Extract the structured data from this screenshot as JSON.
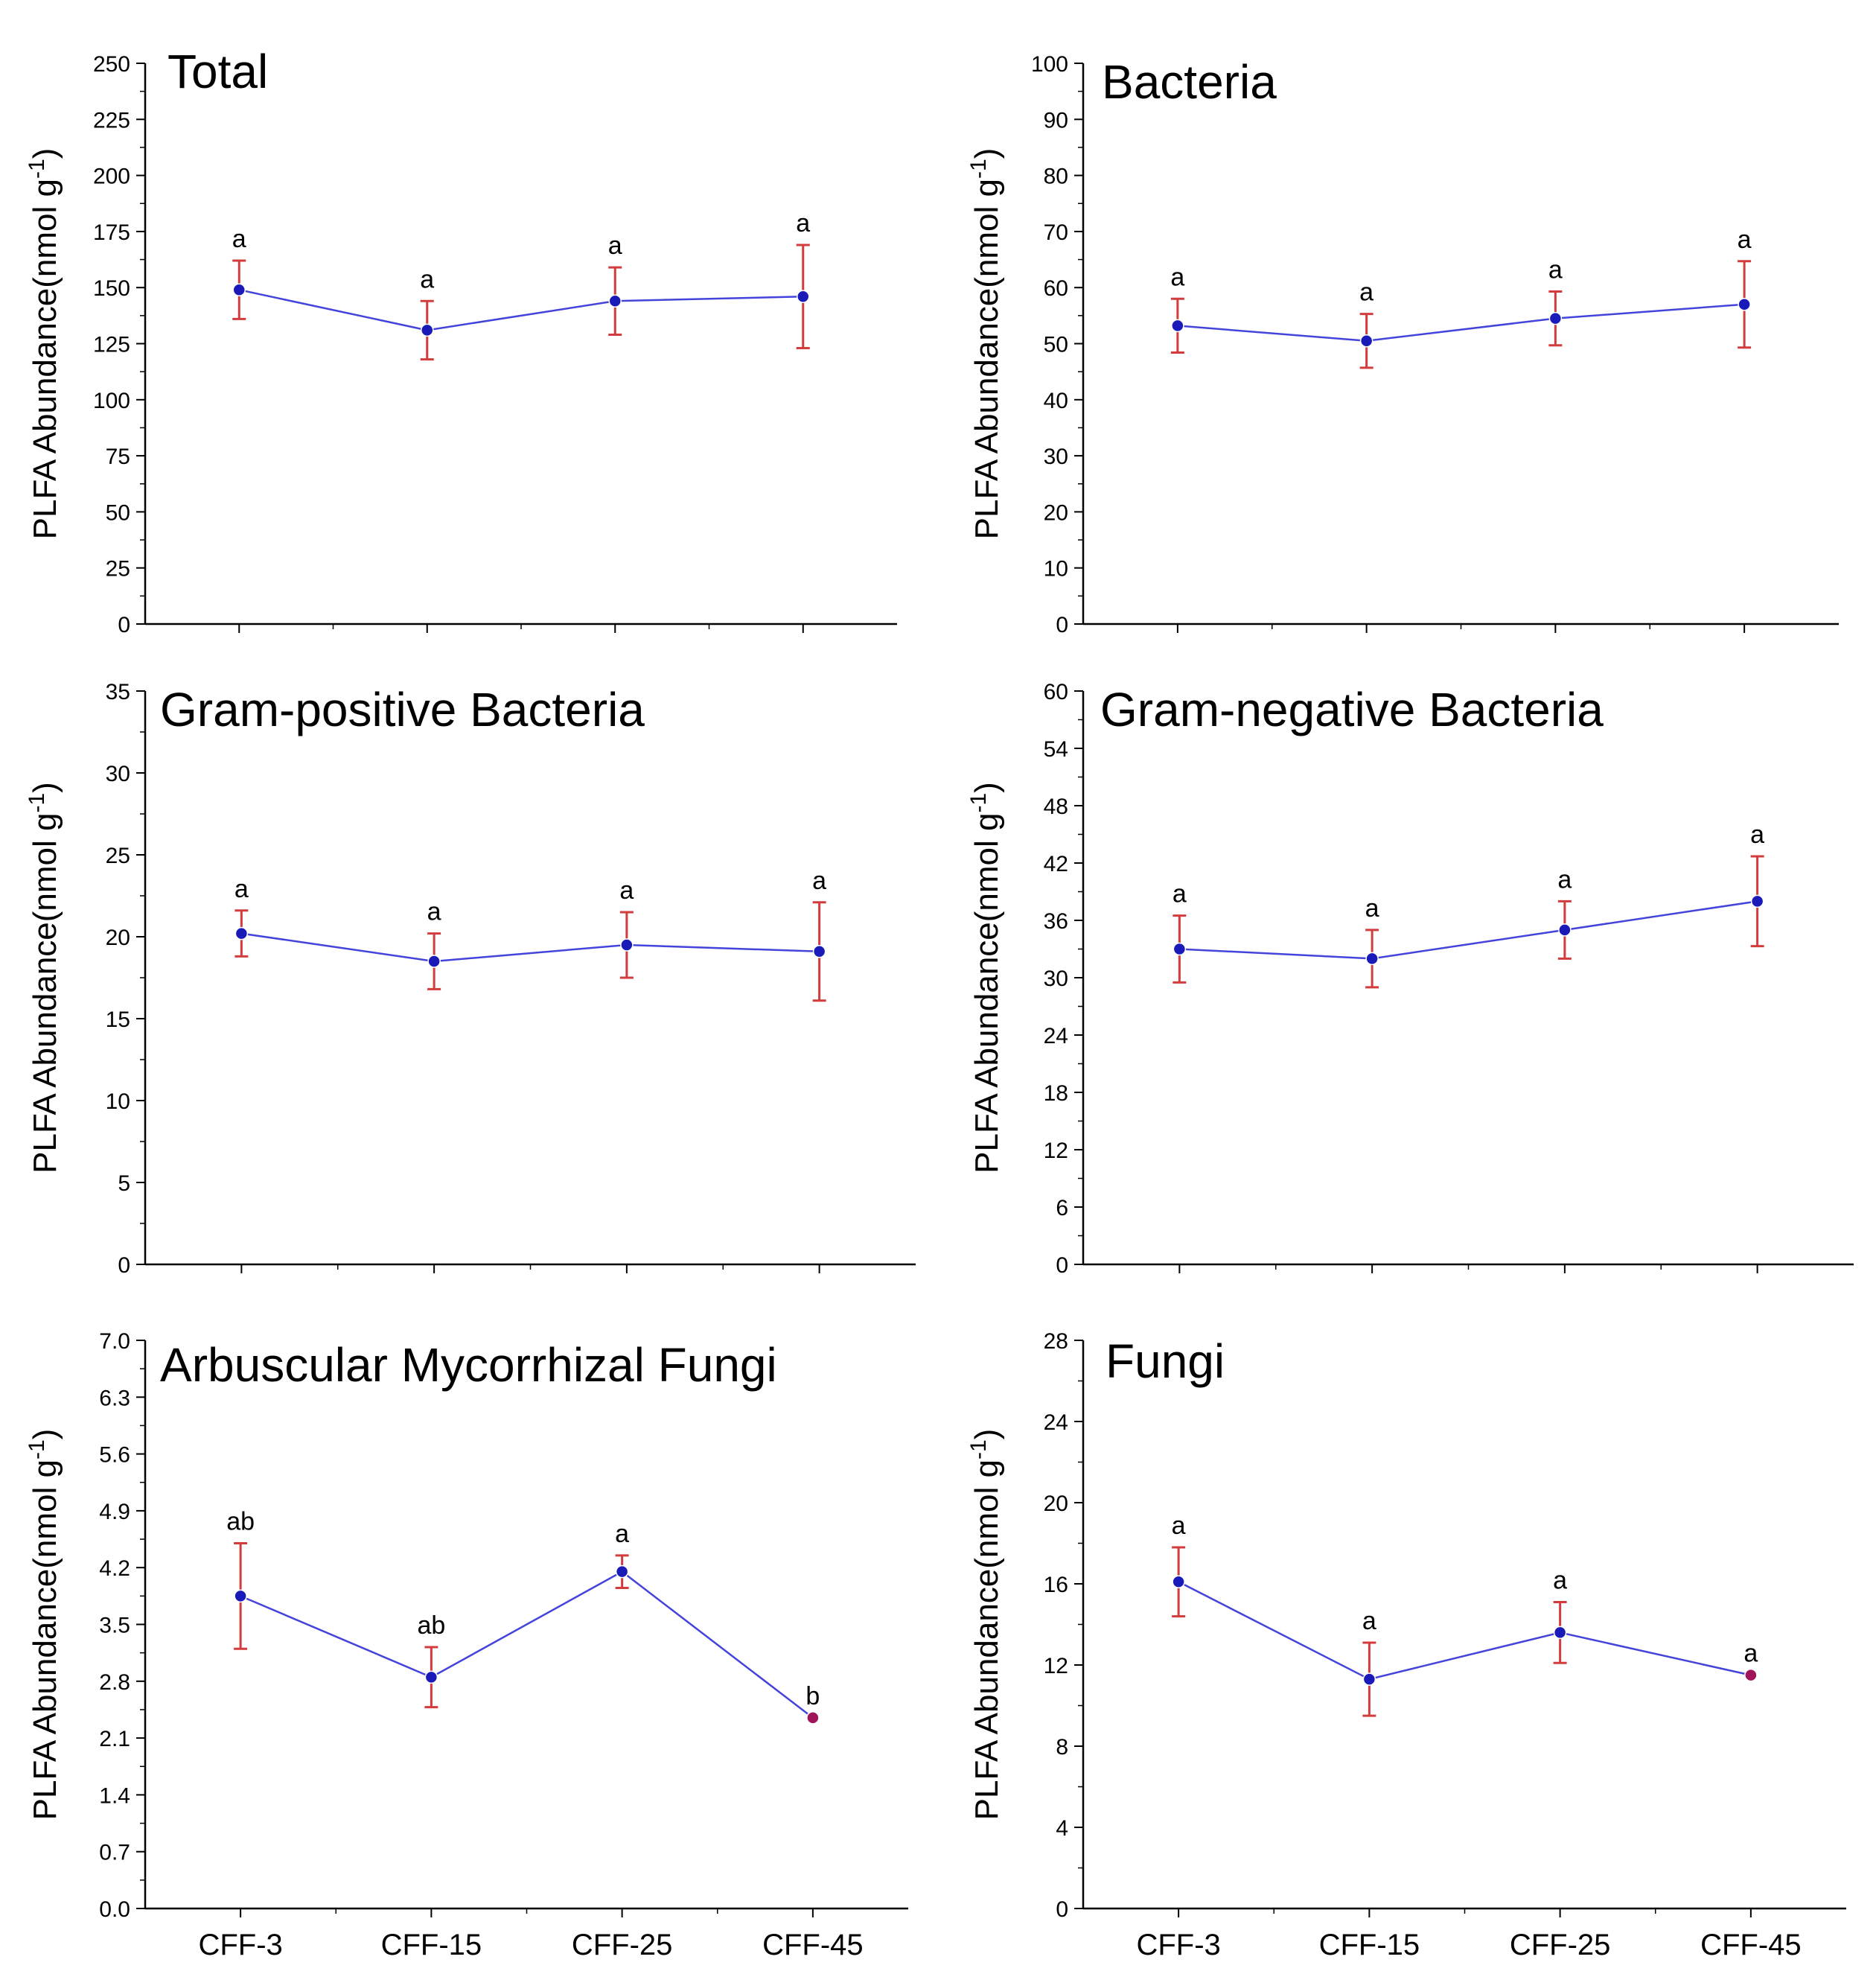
{
  "chart_data": [
    {
      "type": "line",
      "title": "Total",
      "ylabel": "PLFA Abundance(nmol g",
      "ylabel_superscript": "-1",
      "ylabel_close": ")",
      "categories": [
        "CFF-3",
        "CFF-15",
        "CFF-25",
        "CFF-45"
      ],
      "values": [
        149,
        131,
        144,
        146
      ],
      "errors": [
        13,
        13,
        15,
        23
      ],
      "letters": [
        "a",
        "a",
        "a",
        "a"
      ],
      "ylim": [
        0,
        250
      ],
      "yticks": [
        0,
        25,
        50,
        75,
        100,
        125,
        150,
        175,
        200,
        225,
        250
      ],
      "show_x_labels": false
    },
    {
      "type": "line",
      "title": "Bacteria",
      "ylabel": "PLFA Abundance(nmol g",
      "ylabel_superscript": "-1",
      "ylabel_close": ")",
      "categories": [
        "CFF-3",
        "CFF-15",
        "CFF-25",
        "CFF-45"
      ],
      "values": [
        53.2,
        50.5,
        54.5,
        57
      ],
      "errors": [
        4.8,
        4.8,
        4.8,
        7.7
      ],
      "letters": [
        "a",
        "a",
        "a",
        "a"
      ],
      "ylim": [
        0,
        100
      ],
      "yticks": [
        0,
        10,
        20,
        30,
        40,
        50,
        60,
        70,
        80,
        90,
        100
      ],
      "show_x_labels": false
    },
    {
      "type": "line",
      "title": "Gram-positive Bacteria",
      "ylabel": "PLFA Abundance(nmol g",
      "ylabel_superscript": "-1",
      "ylabel_close": ")",
      "categories": [
        "CFF-3",
        "CFF-15",
        "CFF-25",
        "CFF-45"
      ],
      "values": [
        20.2,
        18.5,
        19.5,
        19.1
      ],
      "errors": [
        1.4,
        1.7,
        2.0,
        3.0
      ],
      "letters": [
        "a",
        "a",
        "a",
        "a"
      ],
      "ylim": [
        0,
        35
      ],
      "yticks": [
        0,
        5,
        10,
        15,
        20,
        25,
        30,
        35
      ],
      "show_x_labels": false
    },
    {
      "type": "line",
      "title": "Gram-negative Bacteria",
      "ylabel": "PLFA Abundance(nmol g",
      "ylabel_superscript": "-1",
      "ylabel_close": ")",
      "categories": [
        "CFF-3",
        "CFF-15",
        "CFF-25",
        "CFF-45"
      ],
      "values": [
        33,
        32,
        35,
        38
      ],
      "errors": [
        3.5,
        3.0,
        3.0,
        4.7
      ],
      "letters": [
        "a",
        "a",
        "a",
        "a"
      ],
      "ylim": [
        0,
        60
      ],
      "yticks": [
        0,
        6,
        12,
        18,
        24,
        30,
        36,
        42,
        48,
        54,
        60
      ],
      "show_x_labels": false
    },
    {
      "type": "line",
      "title": "Arbuscular Mycorrhizal Fungi",
      "ylabel": "PLFA Abundance(nmol g",
      "ylabel_superscript": "-1",
      "ylabel_close": ")",
      "categories": [
        "CFF-3",
        "CFF-15",
        "CFF-25",
        "CFF-45"
      ],
      "values": [
        3.85,
        2.85,
        4.15,
        2.35
      ],
      "errors": [
        0.65,
        0.37,
        0.2,
        0
      ],
      "letters": [
        "ab",
        "ab",
        "a",
        "b"
      ],
      "ylim": [
        0,
        7.0
      ],
      "yticks": [
        "0.0",
        "0.7",
        "1.4",
        "2.1",
        "2.8",
        "3.5",
        "4.2",
        "4.9",
        "5.6",
        "6.3",
        "7.0"
      ],
      "show_x_labels": true
    },
    {
      "type": "line",
      "title": "Fungi",
      "ylabel": "PLFA Abundance(nmol g",
      "ylabel_superscript": "-1",
      "ylabel_close": ")",
      "categories": [
        "CFF-3",
        "CFF-15",
        "CFF-25",
        "CFF-45"
      ],
      "values": [
        16.1,
        11.3,
        13.6,
        11.5
      ],
      "errors": [
        1.7,
        1.8,
        1.5,
        0
      ],
      "letters": [
        "a",
        "a",
        "a",
        "a"
      ],
      "ylim": [
        0,
        28
      ],
      "yticks": [
        0,
        4,
        8,
        12,
        16,
        20,
        24,
        28
      ],
      "show_x_labels": true
    }
  ],
  "colors": {
    "line": "#4444dd",
    "marker": "#1a1ab8",
    "marker_no_error": "#a0145a",
    "error_bar": "#d23c3c",
    "axis": "#000000"
  }
}
